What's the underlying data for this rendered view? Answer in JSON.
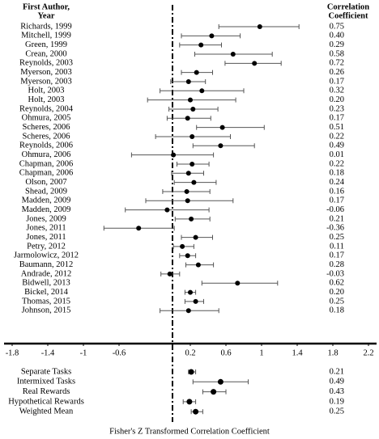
{
  "chart_data": {
    "type": "forest",
    "header_study": [
      "First Author,",
      "Year"
    ],
    "header_coefficient": [
      "Correlation",
      "Coefficient"
    ],
    "xlabel": "Fisher's Z Transformed Correlation Coefficient",
    "xlim": [
      -1.8,
      2.2
    ],
    "xticks": [
      -1.8,
      -1.4,
      -1,
      -0.6,
      0.2,
      0.6,
      1,
      1.4,
      1.8,
      2.2
    ],
    "reference_line": 0,
    "color": "#000000",
    "studies": {
      "labels": [
        "Richards, 1999",
        "Mitchell, 1999",
        "Green, 1999",
        "Crean, 2000",
        "Reynolds, 2003",
        "Myerson, 2003",
        "Myerson, 2003",
        "Holt, 2003",
        "Holt, 2003",
        "Reynolds, 2004",
        "Ohmura, 2005",
        "Scheres, 2006",
        "Scheres, 2006",
        "Reynolds, 2006",
        "Ohmura, 2006",
        "Chapman, 2006",
        "Chapman, 2006",
        "Olson, 2007",
        "Shead, 2009",
        "Madden, 2009",
        "Madden, 2009",
        "Jones, 2009",
        "Jones, 2011",
        "Jones, 2011",
        "Petry, 2012",
        "Jarmolowicz, 2012",
        "Baumann, 2012",
        "Andrade, 2012",
        "Bidwell, 2013",
        "Bickel, 2014",
        "Thomas, 2015",
        "Johnson, 2015"
      ],
      "values": [
        0.98,
        0.44,
        0.32,
        0.68,
        0.92,
        0.27,
        0.18,
        0.33,
        0.2,
        0.23,
        0.17,
        0.56,
        0.22,
        0.54,
        0.01,
        0.22,
        0.18,
        0.24,
        0.16,
        0.17,
        -0.06,
        0.21,
        -0.38,
        0.26,
        0.11,
        0.17,
        0.29,
        -0.03,
        0.73,
        0.2,
        0.26,
        0.18
      ],
      "lower": [
        0.52,
        0.1,
        0.08,
        0.25,
        0.59,
        0.1,
        -0.02,
        -0.14,
        -0.28,
        -0.04,
        -0.06,
        0.27,
        -0.19,
        0.23,
        -0.46,
        0.05,
        -0.01,
        0.02,
        -0.11,
        -0.3,
        -0.53,
        0.03,
        -0.77,
        0.1,
        0.01,
        0.08,
        0.15,
        -0.13,
        0.33,
        0.14,
        0.14,
        -0.14
      ],
      "upper": [
        1.42,
        0.76,
        0.55,
        1.12,
        1.22,
        0.45,
        0.37,
        0.8,
        0.71,
        0.51,
        0.43,
        1.03,
        0.65,
        0.92,
        0.46,
        0.41,
        0.35,
        0.49,
        0.42,
        0.68,
        0.41,
        0.42,
        0.02,
        0.45,
        0.24,
        0.26,
        0.46,
        0.08,
        1.18,
        0.26,
        0.35,
        0.52
      ],
      "coefficients": [
        "0.75",
        "0.40",
        "0.29",
        "0.58",
        "0.72",
        "0.26",
        "0.17",
        "0.32",
        "0.20",
        "0.23",
        "0.17",
        "0.51",
        "0.22",
        "0.49",
        "0.01",
        "0.22",
        "0.18",
        "0.24",
        "0.16",
        "0.17",
        "-0.06",
        "0.21",
        "-0.36",
        "0.25",
        "0.11",
        "0.17",
        "0.28",
        "-0.03",
        "0.62",
        "0.20",
        "0.25",
        "0.18"
      ]
    },
    "summary": {
      "labels": [
        "Separate Tasks",
        "Intermixed Tasks",
        "Real Rewards",
        "Hypothetical Rewards",
        "Weighted Mean"
      ],
      "values": [
        0.21,
        0.54,
        0.46,
        0.19,
        0.26
      ],
      "lower": [
        0.18,
        0.23,
        0.34,
        0.12,
        0.21
      ],
      "upper": [
        0.26,
        0.85,
        0.6,
        0.26,
        0.34
      ],
      "coefficients": [
        "0.21",
        "0.49",
        "0.43",
        "0.19",
        "0.25"
      ]
    }
  }
}
